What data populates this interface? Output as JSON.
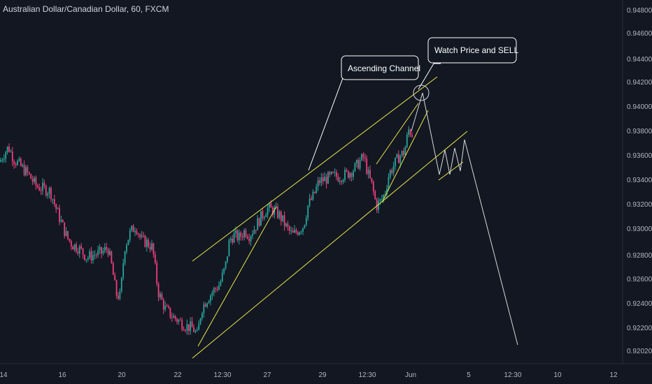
{
  "window": {
    "title": "Australian Dollar/Canadian Dollar, 60, FXCM"
  },
  "colors": {
    "background": "#131722",
    "bull": "#26a69a",
    "bear": "#ef3f7a",
    "annotation_line": "#e8e84a",
    "projection_line": "#ffffff",
    "text": "#b2b5be"
  },
  "chart_data": {
    "type": "candlestick",
    "title": "Australian Dollar/Canadian Dollar, 60, FXCM",
    "symbol": "AUDCAD",
    "interval": "60",
    "source": "FXCM",
    "x_tick_labels": [
      "14",
      "16",
      "20",
      "22",
      "12:30",
      "27",
      "29",
      "12:30",
      "Jun",
      "5",
      "12:30",
      "10",
      "12"
    ],
    "y_tick_labels": [
      "0.94800",
      "0.94600",
      "0.94400",
      "0.94200",
      "0.94000",
      "0.93800",
      "0.93600",
      "0.93400",
      "0.93200",
      "0.93000",
      "0.92800",
      "0.92600",
      "0.92400",
      "0.92200",
      "0.92020"
    ],
    "ylim": [
      0.92,
      0.9482
    ],
    "grid": false,
    "price_path": [
      [
        0,
        0.9356
      ],
      [
        5,
        0.9362
      ],
      [
        12,
        0.9368
      ],
      [
        20,
        0.9358
      ],
      [
        30,
        0.9352
      ],
      [
        40,
        0.9346
      ],
      [
        52,
        0.9336
      ],
      [
        62,
        0.9334
      ],
      [
        72,
        0.9332
      ],
      [
        80,
        0.9318
      ],
      [
        88,
        0.9306
      ],
      [
        96,
        0.9294
      ],
      [
        104,
        0.9288
      ],
      [
        112,
        0.9286
      ],
      [
        118,
        0.9282
      ],
      [
        124,
        0.9278
      ],
      [
        134,
        0.928
      ],
      [
        146,
        0.9282
      ],
      [
        154,
        0.9286
      ],
      [
        160,
        0.927
      ],
      [
        166,
        0.9248
      ],
      [
        172,
        0.9246
      ],
      [
        178,
        0.9286
      ],
      [
        186,
        0.9298
      ],
      [
        194,
        0.9304
      ],
      [
        202,
        0.9292
      ],
      [
        210,
        0.929
      ],
      [
        218,
        0.9286
      ],
      [
        226,
        0.925
      ],
      [
        236,
        0.9236
      ],
      [
        246,
        0.923
      ],
      [
        256,
        0.9226
      ],
      [
        266,
        0.9222
      ],
      [
        276,
        0.922
      ],
      [
        282,
        0.9214
      ],
      [
        288,
        0.9236
      ],
      [
        296,
        0.9244
      ],
      [
        304,
        0.925
      ],
      [
        314,
        0.9256
      ],
      [
        322,
        0.927
      ],
      [
        328,
        0.9292
      ],
      [
        334,
        0.9296
      ],
      [
        342,
        0.9294
      ],
      [
        350,
        0.93
      ],
      [
        356,
        0.9296
      ],
      [
        364,
        0.9302
      ],
      [
        372,
        0.931
      ],
      [
        382,
        0.9318
      ],
      [
        392,
        0.9316
      ],
      [
        400,
        0.9312
      ],
      [
        410,
        0.9302
      ],
      [
        418,
        0.9296
      ],
      [
        426,
        0.93
      ],
      [
        434,
        0.9304
      ],
      [
        440,
        0.932
      ],
      [
        448,
        0.9328
      ],
      [
        456,
        0.934
      ],
      [
        466,
        0.9342
      ],
      [
        476,
        0.9344
      ],
      [
        486,
        0.9344
      ],
      [
        496,
        0.9346
      ],
      [
        506,
        0.935
      ],
      [
        514,
        0.9356
      ],
      [
        520,
        0.936
      ],
      [
        526,
        0.9346
      ],
      [
        532,
        0.9336
      ],
      [
        538,
        0.932
      ],
      [
        544,
        0.9324
      ],
      [
        550,
        0.933
      ],
      [
        556,
        0.9346
      ],
      [
        562,
        0.9352
      ],
      [
        570,
        0.936
      ],
      [
        578,
        0.9364
      ],
      [
        584,
        0.9382
      ],
      [
        590,
        0.9378
      ]
    ],
    "annotations": [
      {
        "type": "text",
        "text": "Ascending Channel"
      },
      {
        "type": "text",
        "text": "Watch Price and SELL"
      }
    ]
  },
  "annotation_labels": {
    "ascending_channel": "Ascending Channel",
    "watch_price": "Watch Price and SELL"
  }
}
